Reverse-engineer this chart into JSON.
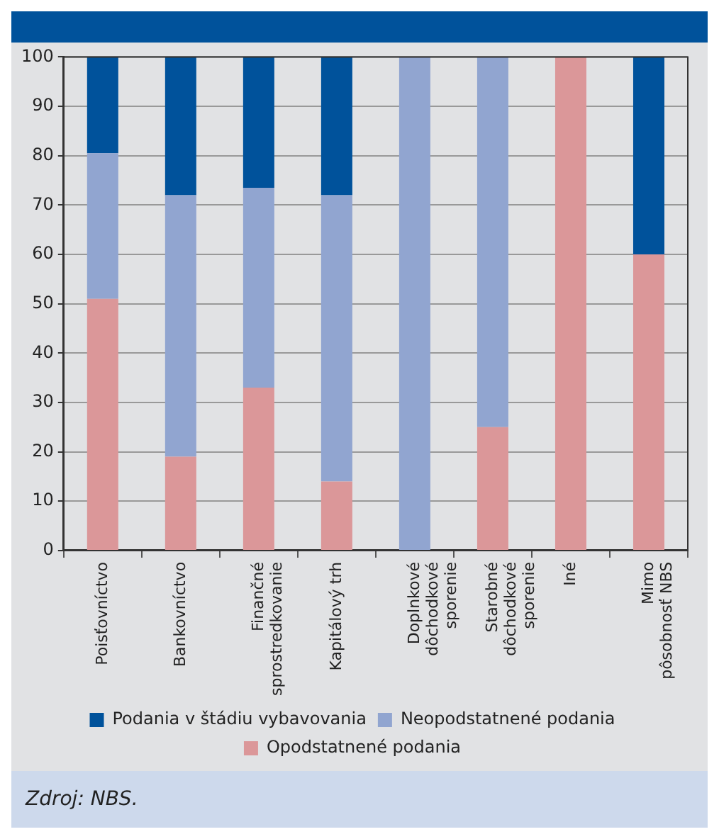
{
  "chart_data": {
    "type": "bar",
    "stacked": true,
    "categories": [
      "Poisťovníctvo",
      "Bankovníctvo",
      "Finančné\nsprostredkovanie",
      "Kapitálový trh",
      "Doplnkové\ndôchodkové\nsporenie",
      "Starobné\ndôchodkové\nsporenie",
      "Iné",
      "Mimo\npôsobnosť NBS"
    ],
    "series": [
      {
        "name": "Opodstatnené podania",
        "color": "#db9799",
        "values": [
          51,
          19,
          33,
          14,
          0,
          25,
          100,
          60
        ]
      },
      {
        "name": "Neopodstatnené podania",
        "color": "#91a5d0",
        "values": [
          29.5,
          53,
          40.5,
          58,
          100,
          75,
          0,
          0
        ]
      },
      {
        "name": "Podania v štádiu vybavovania",
        "color": "#00529b",
        "values": [
          19.5,
          28,
          26.5,
          28,
          0,
          0,
          0,
          40
        ]
      }
    ],
    "ylim": [
      0,
      100
    ],
    "yticks": [
      0,
      10,
      20,
      30,
      40,
      50,
      60,
      70,
      80,
      90,
      100
    ],
    "grid": "y",
    "legend": "bottom",
    "annotations": [
      "Zdroj: NBS."
    ]
  }
}
